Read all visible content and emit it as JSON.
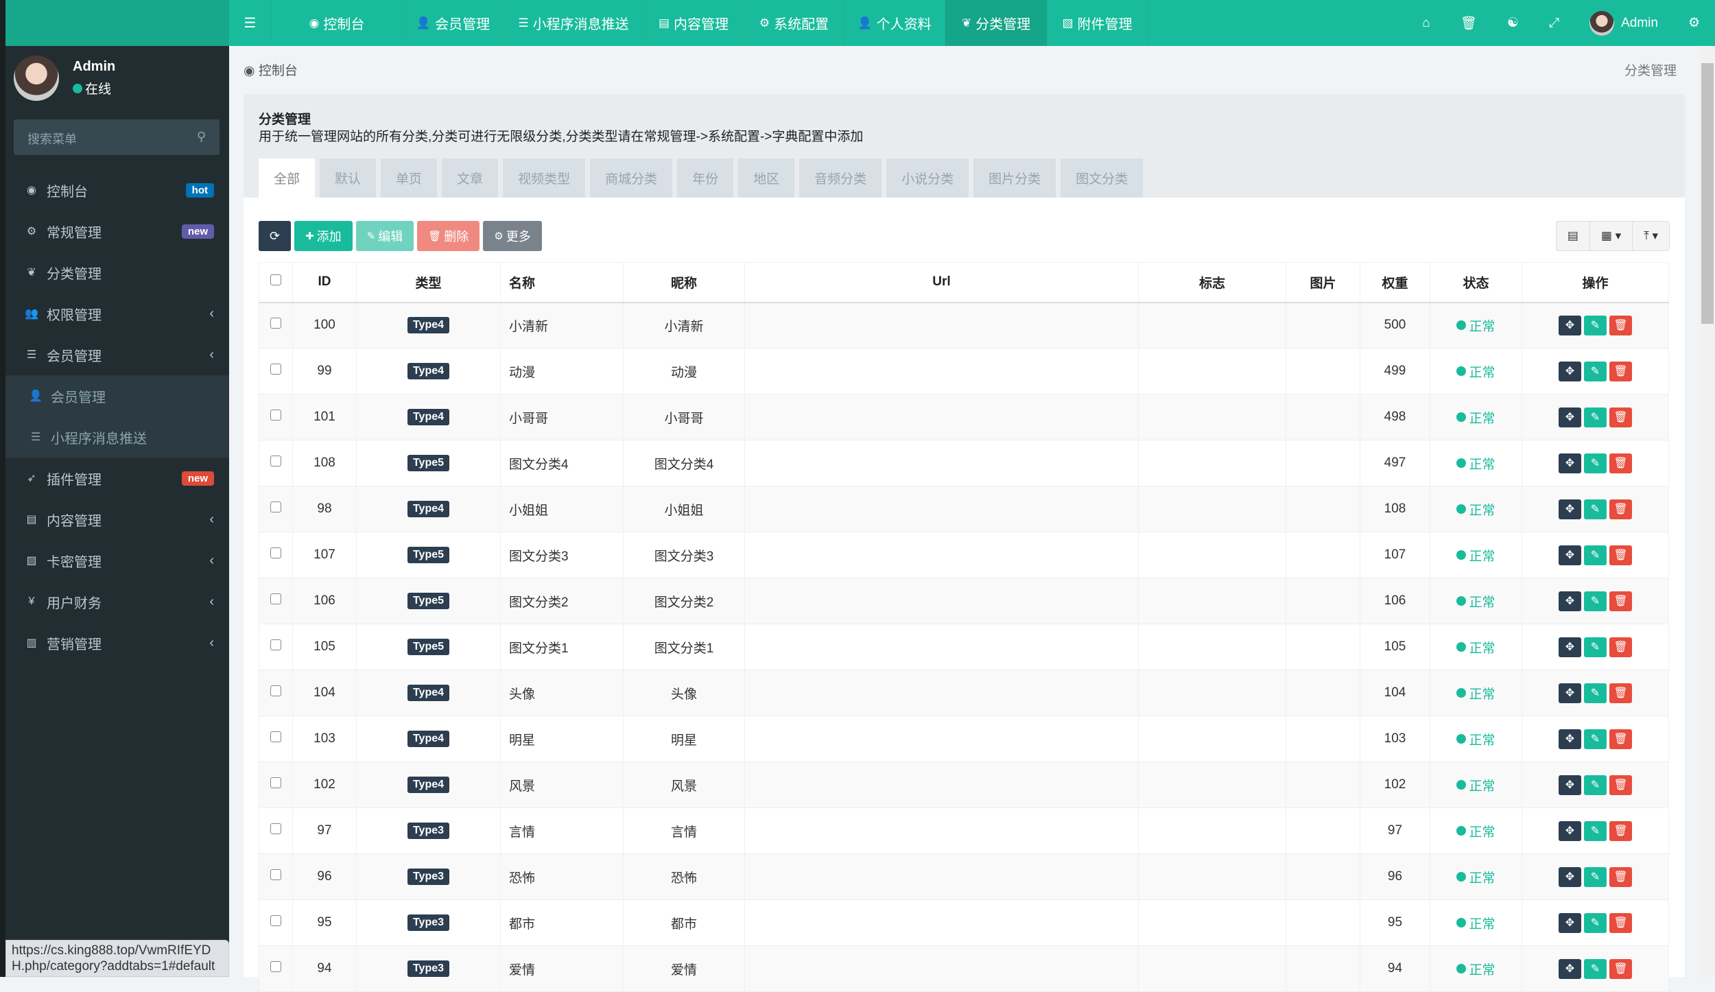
{
  "colors": {
    "primary": "#18bc9c",
    "dark": "#2c3e50",
    "danger": "#e74c3c",
    "sidebar": "#222d32"
  },
  "sidebar": {
    "user": {
      "name": "Admin",
      "status": "在线"
    },
    "search_placeholder": "搜索菜单",
    "items": [
      {
        "label": "控制台",
        "icon": "dashboard-icon",
        "badge": "hot",
        "badge_color": "#0073b7"
      },
      {
        "label": "常规管理",
        "icon": "cogs-icon",
        "badge": "new",
        "badge_color": "#605ca8"
      },
      {
        "label": "分类管理",
        "icon": "leaf-icon"
      },
      {
        "label": "权限管理",
        "icon": "group-icon",
        "chevron": true
      },
      {
        "label": "会员管理",
        "icon": "list-icon",
        "chevron": true
      },
      {
        "label": "会员管理",
        "icon": "user-icon",
        "sub": true
      },
      {
        "label": "小程序消息推送",
        "icon": "list-icon",
        "sub": true
      },
      {
        "label": "插件管理",
        "icon": "rocket-icon",
        "badge": "new",
        "badge_color": "#dd4b39"
      },
      {
        "label": "内容管理",
        "icon": "file-icon",
        "chevron": true
      },
      {
        "label": "卡密管理",
        "icon": "image-icon",
        "chevron": true
      },
      {
        "label": "用户财务",
        "icon": "yen-icon",
        "chevron": true
      },
      {
        "label": "营销管理",
        "icon": "bar-chart-icon",
        "chevron": true
      }
    ]
  },
  "topnav": {
    "items": [
      {
        "label": "控制台",
        "icon": "dashboard-icon"
      },
      {
        "label": "会员管理",
        "icon": "user-icon"
      },
      {
        "label": "小程序消息推送",
        "icon": "list-icon"
      },
      {
        "label": "内容管理",
        "icon": "file-icon"
      },
      {
        "label": "系统配置",
        "icon": "gear-icon"
      },
      {
        "label": "个人资料",
        "icon": "user-icon"
      },
      {
        "label": "分类管理",
        "icon": "leaf-icon",
        "active": true
      },
      {
        "label": "附件管理",
        "icon": "file-image-icon"
      }
    ],
    "user": "Admin"
  },
  "breadcrumb": {
    "home": "控制台",
    "current": "分类管理"
  },
  "panel": {
    "title": "分类管理",
    "description": "用于统一管理网站的所有分类,分类可进行无限级分类,分类类型请在常规管理->系统配置->字典配置中添加",
    "tabs": [
      "全部",
      "默认",
      "单页",
      "文章",
      "视频类型",
      "商城分类",
      "年份",
      "地区",
      "音频分类",
      "小说分类",
      "图片分类",
      "图文分类"
    ]
  },
  "toolbar": {
    "add": "添加",
    "edit": "编辑",
    "delete": "删除",
    "more": "更多"
  },
  "table": {
    "headers": [
      "ID",
      "类型",
      "名称",
      "昵称",
      "Url",
      "标志",
      "图片",
      "权重",
      "状态",
      "操作"
    ],
    "rows": [
      {
        "id": "100",
        "type": "Type4",
        "name": "小清新",
        "nickname": "小清新",
        "weight": "500",
        "status": "正常"
      },
      {
        "id": "99",
        "type": "Type4",
        "name": "动漫",
        "nickname": "动漫",
        "weight": "499",
        "status": "正常"
      },
      {
        "id": "101",
        "type": "Type4",
        "name": "小哥哥",
        "nickname": "小哥哥",
        "weight": "498",
        "status": "正常"
      },
      {
        "id": "108",
        "type": "Type5",
        "name": "图文分类4",
        "nickname": "图文分类4",
        "weight": "497",
        "status": "正常"
      },
      {
        "id": "98",
        "type": "Type4",
        "name": "小姐姐",
        "nickname": "小姐姐",
        "weight": "108",
        "status": "正常"
      },
      {
        "id": "107",
        "type": "Type5",
        "name": "图文分类3",
        "nickname": "图文分类3",
        "weight": "107",
        "status": "正常"
      },
      {
        "id": "106",
        "type": "Type5",
        "name": "图文分类2",
        "nickname": "图文分类2",
        "weight": "106",
        "status": "正常"
      },
      {
        "id": "105",
        "type": "Type5",
        "name": "图文分类1",
        "nickname": "图文分类1",
        "weight": "105",
        "status": "正常"
      },
      {
        "id": "104",
        "type": "Type4",
        "name": "头像",
        "nickname": "头像",
        "weight": "104",
        "status": "正常"
      },
      {
        "id": "103",
        "type": "Type4",
        "name": "明星",
        "nickname": "明星",
        "weight": "103",
        "status": "正常"
      },
      {
        "id": "102",
        "type": "Type4",
        "name": "风景",
        "nickname": "风景",
        "weight": "102",
        "status": "正常"
      },
      {
        "id": "97",
        "type": "Type3",
        "name": "言情",
        "nickname": "言情",
        "weight": "97",
        "status": "正常"
      },
      {
        "id": "96",
        "type": "Type3",
        "name": "恐怖",
        "nickname": "恐怖",
        "weight": "96",
        "status": "正常"
      },
      {
        "id": "95",
        "type": "Type3",
        "name": "都市",
        "nickname": "都市",
        "weight": "95",
        "status": "正常"
      },
      {
        "id": "94",
        "type": "Type3",
        "name": "爱情",
        "nickname": "爱情",
        "weight": "94",
        "status": "正常"
      }
    ]
  },
  "status_url": "https://cs.king888.top/VwmRIfEYDH.php/category?addtabs=1#default"
}
